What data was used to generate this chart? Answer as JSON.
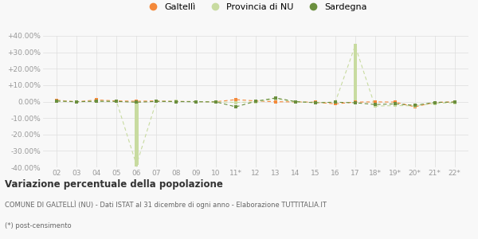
{
  "x_labels": [
    "02",
    "03",
    "04",
    "05",
    "06",
    "07",
    "08",
    "09",
    "10",
    "11*",
    "12",
    "13",
    "14",
    "15",
    "16",
    "17",
    "18*",
    "19*",
    "20*",
    "21*",
    "22*"
  ],
  "galtelli": [
    0.8,
    -0.1,
    1.0,
    0.4,
    0.2,
    0.4,
    0.1,
    0.0,
    -0.1,
    1.2,
    0.4,
    -0.1,
    -0.2,
    -0.4,
    -1.4,
    -0.3,
    -0.2,
    -0.3,
    -3.2,
    -0.5,
    -0.2
  ],
  "provincia_nu": [
    0.4,
    -0.1,
    0.3,
    0.1,
    -38.5,
    0.2,
    0.1,
    0.0,
    -0.2,
    -0.5,
    -0.3,
    1.8,
    -0.3,
    -0.5,
    -0.4,
    34.0,
    -2.8,
    -2.4,
    -2.6,
    -1.1,
    -0.7
  ],
  "sardegna": [
    0.3,
    -0.1,
    0.2,
    0.1,
    -0.4,
    0.1,
    0.0,
    -0.1,
    -0.2,
    -3.2,
    0.2,
    2.2,
    0.0,
    -0.7,
    -0.4,
    -0.7,
    -1.8,
    -1.4,
    -2.3,
    -0.5,
    -0.3
  ],
  "galtelli_color": "#f4893a",
  "provincia_nu_color": "#c8dba0",
  "sardegna_color": "#6b8f3e",
  "ylim": [
    -40,
    40
  ],
  "yticks": [
    -40,
    -30,
    -20,
    -10,
    0,
    10,
    20,
    30,
    40
  ],
  "ytick_labels": [
    "-40.00%",
    "-30.00%",
    "-20.00%",
    "-10.00%",
    "0.00%",
    "+10.00%",
    "+20.00%",
    "+30.00%",
    "+40.00%"
  ],
  "title": "Variazione percentuale della popolazione",
  "subtitle1": "COMUNE DI GALTELLÌ (NU) - Dati ISTAT al 31 dicembre di ogni anno - Elaborazione TUTTITALIA.IT",
  "subtitle2": "(*) post-censimento",
  "legend_labels": [
    "Galtellì",
    "Provincia di NU",
    "Sardegna"
  ],
  "background_color": "#f8f8f8",
  "grid_color": "#dddddd"
}
